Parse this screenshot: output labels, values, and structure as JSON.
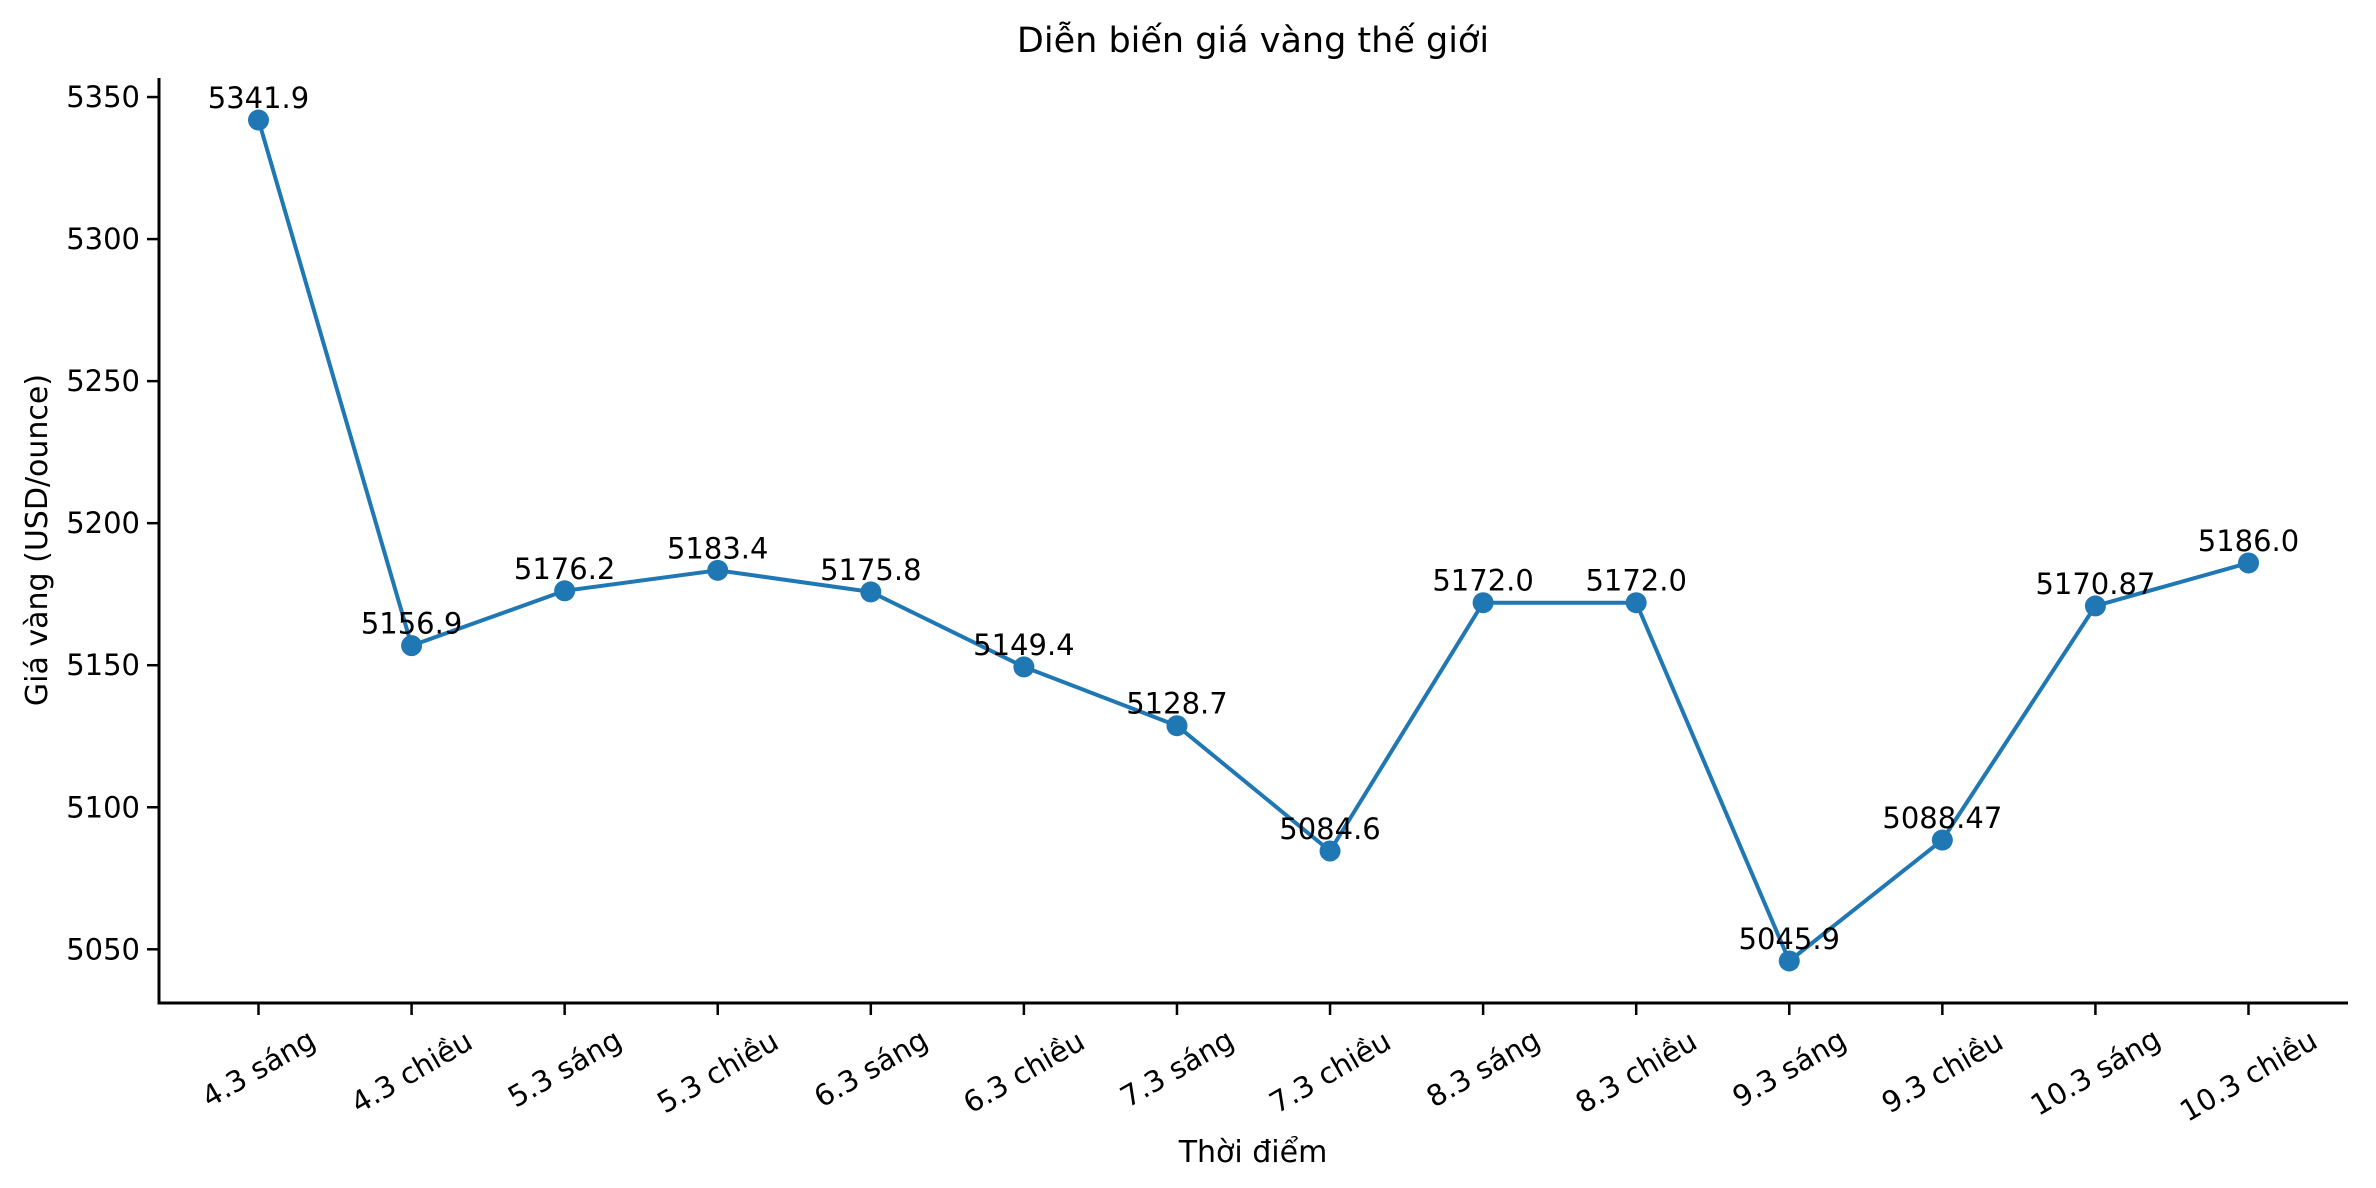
{
  "figure": {
    "background": "#ffffff"
  },
  "chart_data": {
    "type": "line",
    "title": "Diễn biến giá vàng thế giới",
    "xlabel": "Thời điểm",
    "ylabel": "Giá vàng (USD/ounce)",
    "categories": [
      "4.3 sáng",
      "4.3 chiều",
      "5.3 sáng",
      "5.3 chiều",
      "6.3 sáng",
      "6.3 chiều",
      "7.3 sáng",
      "7.3 chiều",
      "8.3 sáng",
      "8.3 chiều",
      "9.3 sáng",
      "9.3 chiều",
      "10.3 sáng",
      "10.3 chiều"
    ],
    "series": [
      {
        "values": [
          5341.9,
          5156.9,
          5176.2,
          5183.4,
          5175.8,
          5149.4,
          5128.7,
          5084.6,
          5172.0,
          5172.0,
          5045.9,
          5088.47,
          5170.87,
          5186.0
        ],
        "point_labels": [
          "5341.9",
          "5156.9",
          "5176.2",
          "5183.4",
          "5175.8",
          "5149.4",
          "5128.7",
          "5084.6",
          "5172.0",
          "5172.0",
          "5045.9",
          "5088.47",
          "5170.87",
          "5186.0"
        ],
        "color": "#1f77b4"
      }
    ],
    "yticks": [
      5050,
      5100,
      5150,
      5200,
      5250,
      5300,
      5350
    ],
    "ylim": [
      5031.1,
      5356.7
    ],
    "x_tick_rotation_deg": 30,
    "grid": false,
    "legend": "none",
    "axis_color": "#000000",
    "text_color": "#000000"
  }
}
